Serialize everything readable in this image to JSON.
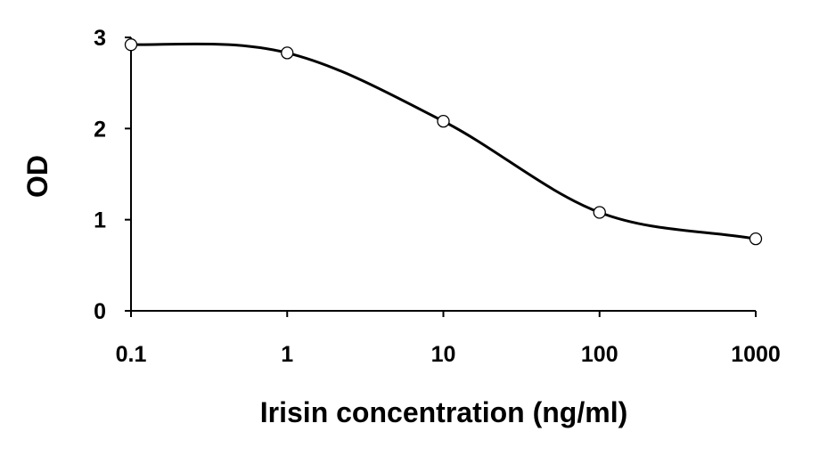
{
  "chart_data": {
    "type": "line",
    "title": "",
    "xlabel": "Irisin concentration (ng/ml)",
    "ylabel": "OD",
    "x_scale": "log",
    "xlim": [
      0.1,
      1000
    ],
    "ylim": [
      0,
      3
    ],
    "x_ticks": [
      0.1,
      1,
      10,
      100,
      1000
    ],
    "x_tick_labels": [
      "0.1",
      "1",
      "10",
      "100",
      "1000"
    ],
    "y_ticks": [
      0,
      1,
      2,
      3
    ],
    "y_tick_labels": [
      "0",
      "1",
      "2",
      "3"
    ],
    "grid": false,
    "legend": "none",
    "line_color": "#000000",
    "marker_fill": "#ffffff",
    "marker_stroke": "#000000",
    "series": [
      {
        "x": [
          0.1,
          1,
          10,
          100,
          1000
        ],
        "y": [
          2.92,
          2.83,
          2.08,
          1.08,
          0.79
        ]
      }
    ]
  }
}
